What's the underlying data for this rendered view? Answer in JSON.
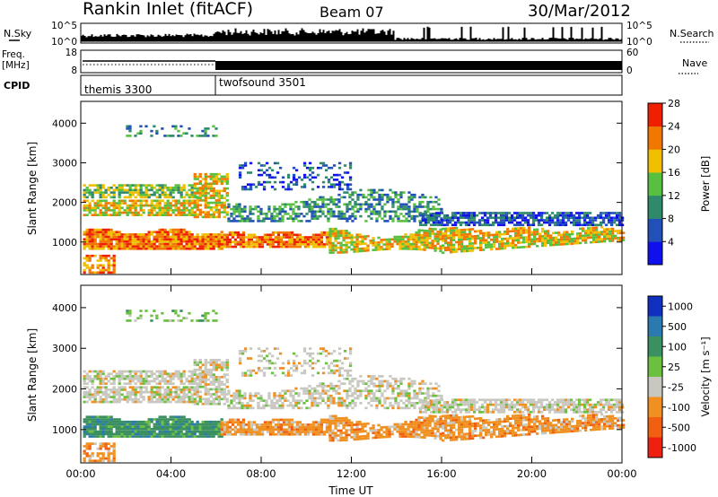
{
  "header": {
    "station": "Rankin Inlet (fitACF)",
    "beam": "Beam 07",
    "date": "30/Mar/2012"
  },
  "summary": {
    "nsky_label": "N.Sky",
    "nsearch_label": "N.Search",
    "freq_label_top": "Freq.",
    "freq_label_unit": "[MHz]",
    "nave_label": "Nave",
    "cpid_label": "CPID",
    "left_ticks_top": [
      "10^5",
      "10^0"
    ],
    "right_ticks_top": [
      "10^5",
      "10^0"
    ],
    "left_ticks_freq": [
      "18",
      "8"
    ],
    "right_ticks_nave": [
      "60",
      "0"
    ],
    "cpid_modes": [
      {
        "name": "themis 3300",
        "start": "00:00",
        "end": "06:00"
      },
      {
        "name": "twofsound 3501",
        "start": "06:00",
        "end": "24:00"
      }
    ]
  },
  "chart_data": [
    {
      "type": "heatmap",
      "name": "power",
      "ylabel": "Slant Range [km]",
      "yticks": [
        "1000",
        "2000",
        "3000",
        "4000"
      ],
      "ylim": [
        180,
        4550
      ],
      "xticks": [
        "00:00",
        "04:00",
        "08:00",
        "12:00",
        "16:00",
        "20:00",
        "00:00"
      ],
      "xlim_hours": [
        0,
        24
      ],
      "colorbar": {
        "label": "Power [dB]",
        "ticks": [
          "4",
          "8",
          "12",
          "16",
          "20",
          "24",
          "28"
        ],
        "colors": [
          "#1010ee",
          "#2050b8",
          "#2e8a6a",
          "#58c040",
          "#f0c000",
          "#f07800",
          "#ee2000"
        ]
      }
    },
    {
      "type": "heatmap",
      "name": "velocity",
      "ylabel": "Slant Range [km]",
      "yticks": [
        "1000",
        "2000",
        "3000",
        "4000"
      ],
      "ylim": [
        180,
        4550
      ],
      "xticks": [
        "00:00",
        "04:00",
        "08:00",
        "12:00",
        "16:00",
        "20:00",
        "00:00"
      ],
      "xlabel": "Time UT",
      "xlim_hours": [
        0,
        24
      ],
      "colorbar": {
        "label": "Velocity [m s⁻¹]",
        "ticks": [
          "1000",
          "500",
          "100",
          "25",
          "-25",
          "-100",
          "-500",
          "-1000"
        ],
        "colors": [
          "#1030c0",
          "#2a7ab0",
          "#3a9060",
          "#6cc040",
          "#c8c8c0",
          "#f09020",
          "#f06010",
          "#ee2010"
        ]
      }
    }
  ]
}
